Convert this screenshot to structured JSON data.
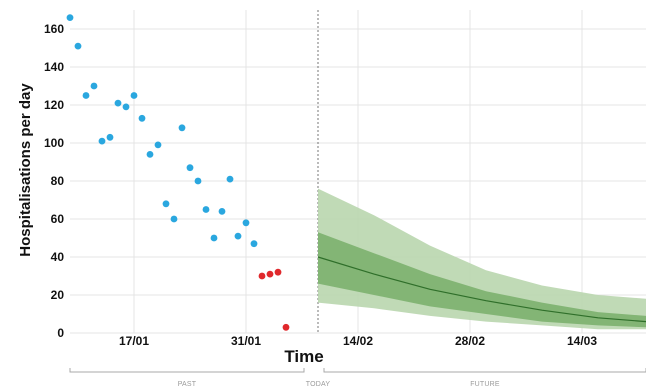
{
  "chart_data": {
    "type": "scatter",
    "title": "",
    "xlabel": "Time",
    "ylabel": "Hospitalisations per day",
    "xlim": [
      "2021-01-09",
      "2021-03-22"
    ],
    "ylim": [
      0,
      170
    ],
    "yticks": [
      0,
      20,
      40,
      60,
      80,
      100,
      120,
      140,
      160
    ],
    "xticks": [
      {
        "date": "2021-01-17",
        "label": "17/01"
      },
      {
        "date": "2021-01-31",
        "label": "31/01"
      },
      {
        "date": "2021-02-14",
        "label": "14/02"
      },
      {
        "date": "2021-02-28",
        "label": "28/02"
      },
      {
        "date": "2021-03-14",
        "label": "14/03"
      }
    ],
    "today": "2021-02-09",
    "period_labels": [
      "PAST",
      "TODAY",
      "FUTURE"
    ],
    "colors": {
      "observed": "#2aa7df",
      "recent": "#e0282c",
      "band_outer": "#b9d6ae",
      "band_inner": "#7fb372",
      "median": "#2f6f2a",
      "axis_text": "#111111",
      "period_text": "#9a9a9a",
      "grid": "#e4e4e4"
    },
    "series": [
      {
        "points": [
          [
            "2021-01-09",
            166
          ],
          [
            "2021-01-10",
            151
          ],
          [
            "2021-01-11",
            125
          ],
          [
            "2021-01-12",
            130
          ],
          [
            "2021-01-13",
            101
          ],
          [
            "2021-01-14",
            103
          ],
          [
            "2021-01-15",
            121
          ],
          [
            "2021-01-16",
            119
          ],
          [
            "2021-01-17",
            125
          ],
          [
            "2021-01-18",
            113
          ],
          [
            "2021-01-19",
            94
          ],
          [
            "2021-01-20",
            99
          ],
          [
            "2021-01-21",
            68
          ],
          [
            "2021-01-22",
            60
          ],
          [
            "2021-01-23",
            108
          ],
          [
            "2021-01-24",
            87
          ],
          [
            "2021-01-25",
            80
          ],
          [
            "2021-01-26",
            65
          ],
          [
            "2021-01-27",
            50
          ],
          [
            "2021-01-28",
            64
          ],
          [
            "2021-01-29",
            81
          ],
          [
            "2021-01-30",
            51
          ],
          [
            "2021-01-31",
            58
          ],
          [
            "2021-02-01",
            47
          ]
        ]
      },
      {
        "points": [
          [
            "2021-02-02",
            30
          ],
          [
            "2021-02-03",
            31
          ],
          [
            "2021-02-04",
            32
          ],
          [
            "2021-02-05",
            3
          ]
        ]
      }
    ],
    "forecast": {
      "x": [
        "2021-02-09",
        "2021-02-16",
        "2021-02-23",
        "2021-03-02",
        "2021-03-09",
        "2021-03-16",
        "2021-03-22"
      ],
      "median": [
        40,
        31,
        23,
        17,
        12,
        8,
        6
      ],
      "inner_lower": [
        26,
        20,
        14,
        10,
        6,
        4,
        3
      ],
      "inner_upper": [
        53,
        42,
        31,
        22,
        16,
        11,
        9
      ],
      "outer_lower": [
        16,
        13,
        9,
        6,
        4,
        2,
        2
      ],
      "outer_upper": [
        76,
        62,
        46,
        33,
        25,
        20,
        18
      ]
    }
  }
}
